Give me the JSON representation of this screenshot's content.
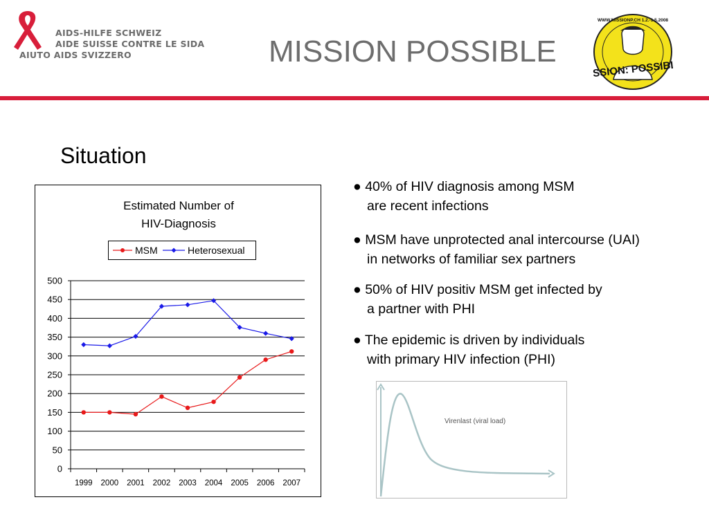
{
  "header": {
    "org_lines": [
      "AIDS-HILFE SCHWEIZ",
      "AIDE SUISSE CONTRE LE SIDA",
      "AIUTO AIDS SVIZZERO"
    ],
    "title": "MISSION POSSIBLE",
    "badge_text": "MISSION: POSSIBLE",
    "badge_ring_text": "WWW.MISSIONP.CH 1.2.-1.5.2008",
    "accent_color": "#d81e3a",
    "badge_color": "#f3e21b"
  },
  "section": {
    "title": "Situation"
  },
  "bullets": [
    {
      "line1": "40% of HIV diagnosis among MSM",
      "line2": "are recent infections"
    },
    {
      "line1": "MSM have unprotected anal intercourse (UAI)",
      "line2": "in networks of familiar sex partners"
    },
    {
      "line1": "50% of HIV positiv MSM get infected by",
      "line2": "a partner with PHI"
    },
    {
      "line1": "The epidemic is driven by individuals",
      "line2": "with primary HIV infection (PHI)"
    }
  ],
  "bullet_marker": "●",
  "chart_data": [
    {
      "type": "line",
      "title_lines": [
        "Estimated Number of",
        "HIV-Diagnosis"
      ],
      "x": [
        "1999",
        "2000",
        "2001",
        "2002",
        "2003",
        "2004",
        "2005",
        "2006",
        "2007"
      ],
      "series": [
        {
          "name": "MSM",
          "color": "#e8191a",
          "marker": "circle",
          "values": [
            150,
            150,
            145,
            192,
            162,
            178,
            243,
            290,
            312
          ]
        },
        {
          "name": "Heterosexual",
          "color": "#1a1ae8",
          "marker": "diamond",
          "values": [
            330,
            327,
            352,
            432,
            436,
            447,
            376,
            360,
            346
          ]
        }
      ],
      "ylim": [
        0,
        500
      ],
      "yticks": [
        "500",
        "450",
        "400",
        "350",
        "300",
        "250",
        "200",
        "150",
        "100",
        "50",
        "0"
      ],
      "grid": true,
      "legend": "top"
    },
    {
      "type": "line",
      "series": [
        {
          "name": "Virenlast (viral load)",
          "color": "#a9c4c6"
        }
      ],
      "annotation": "Virenlast (viral load)",
      "grid": false
    }
  ]
}
